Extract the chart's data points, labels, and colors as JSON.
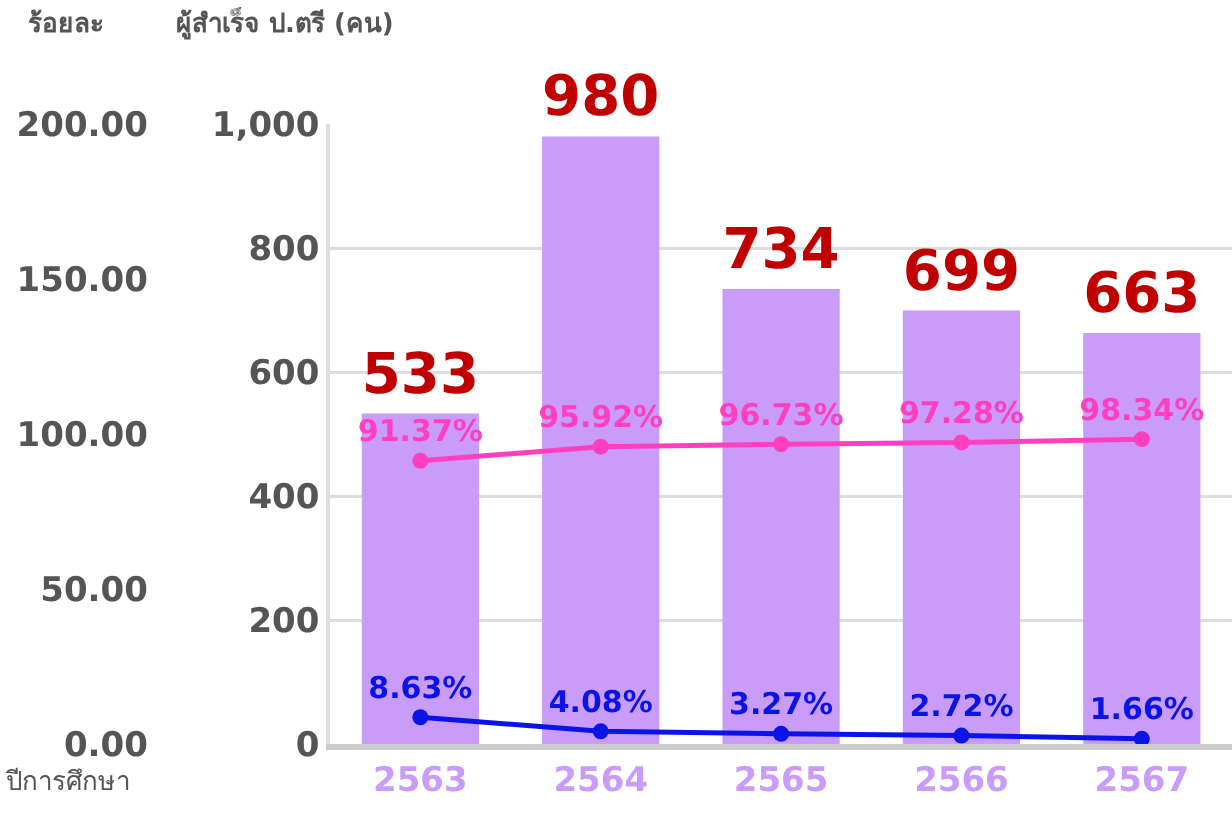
{
  "chart_data": {
    "type": "bar",
    "ylabel": "ผู้สำเร็จ ป.ตรี (คน)",
    "y2label": "ร้อยละ",
    "xlabel": "ปีการศึกษา",
    "categories": [
      "2563",
      "2564",
      "2565",
      "2566",
      "2567"
    ],
    "series": [
      {
        "color": "#c89cf8",
        "values": [
          533,
          980,
          734,
          699,
          663
        ],
        "value_labels": [
          "533",
          "980",
          "734",
          "699",
          "663"
        ]
      },
      {
        "type": "line",
        "axis": "y2",
        "color": "#ff3fc0",
        "values": [
          91.37,
          95.92,
          96.73,
          97.28,
          98.34
        ],
        "value_labels": [
          "91.37%",
          "95.92%",
          "96.73%",
          "97.28%",
          "98.34%"
        ]
      },
      {
        "type": "line",
        "axis": "y2",
        "color": "#0a14e6",
        "values": [
          8.63,
          4.08,
          3.27,
          2.72,
          1.66
        ],
        "value_labels": [
          "8.63%",
          "4.08%",
          "3.27%",
          "2.72%",
          "1.66%"
        ]
      }
    ],
    "ylim": [
      0,
      1000
    ],
    "yticks": [
      0,
      200,
      400,
      600,
      800,
      {
        "value": 1000,
        "label": "1,000"
      }
    ],
    "y2lim": [
      0,
      200
    ],
    "y2ticks": [
      {
        "value": 0,
        "label": "0.00"
      },
      {
        "value": 50,
        "label": "50.00"
      },
      {
        "value": 100,
        "label": "100.00"
      },
      {
        "value": 150,
        "label": "150.00"
      },
      {
        "value": 200,
        "label": "200.00"
      }
    ],
    "grid": "y",
    "legend": false,
    "marker": "circle",
    "line_style": "solid"
  }
}
